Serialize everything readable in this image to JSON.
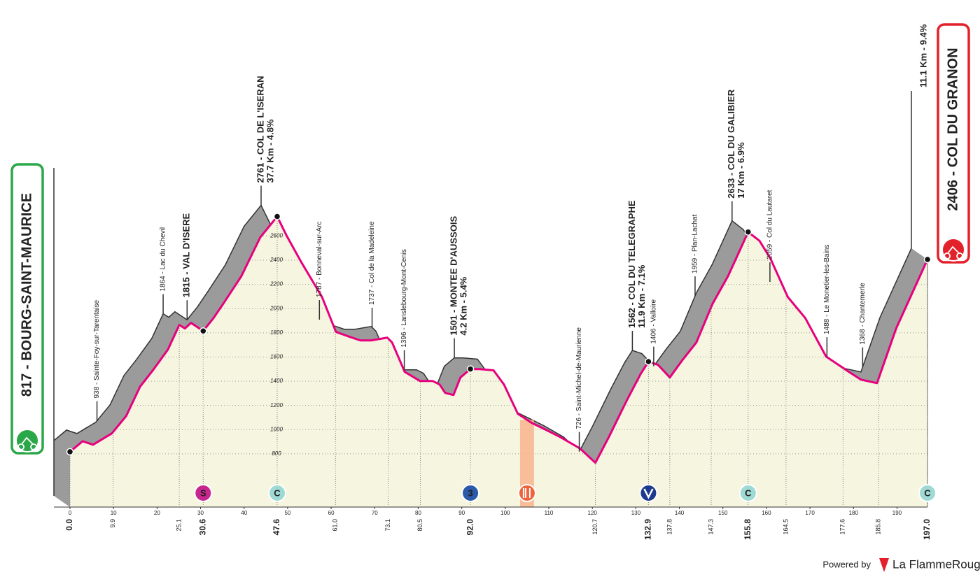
{
  "chart_data": {
    "type": "area",
    "color": "#e6007e",
    "xlim": [
      0,
      197
    ],
    "ylim": [
      360,
      4550
    ],
    "xticks": [
      0,
      10,
      20,
      30,
      40,
      50,
      60,
      70,
      80,
      90,
      100,
      110,
      120,
      130,
      140,
      150,
      160,
      170,
      180,
      190
    ],
    "yticks": [
      800,
      1000,
      1200,
      1400,
      1600,
      1800,
      2000,
      2200,
      2400,
      2600
    ],
    "x": [
      0,
      2.9,
      5.3,
      7.4,
      9.6,
      12.9,
      16.1,
      19.0,
      22.5,
      25.1,
      26.4,
      27.8,
      30.6,
      33.0,
      35.4,
      39.4,
      43.7,
      47.6,
      49.8,
      53.1,
      57.9,
      61.1,
      64.3,
      66.7,
      69.2,
      72.9,
      74.0,
      76.9,
      80.4,
      83.3,
      84.9,
      86.2,
      88.1,
      89.7,
      92.0,
      94.1,
      97.3,
      99.7,
      102.9,
      106.1,
      109.4,
      112.6,
      117.1,
      120.7,
      123.8,
      127.9,
      131.1,
      132.9,
      135.1,
      137.8,
      140.7,
      143.9,
      147.6,
      151.2,
      155.8,
      158.4,
      160.9,
      164.9,
      168.9,
      173.7,
      178.5,
      181.7,
      185.4,
      189.8,
      197.0
    ],
    "values": [
      817,
      904,
      875,
      921,
      968,
      1112,
      1355,
      1488,
      1662,
      1865,
      1836,
      1882,
      1815,
      1923,
      2050,
      2270,
      2588,
      2761,
      2600,
      2386,
      2096,
      1807,
      1766,
      1737,
      1737,
      1760,
      1720,
      1477,
      1402,
      1402,
      1373,
      1303,
      1286,
      1431,
      1501,
      1500,
      1490,
      1373,
      1130,
      1055,
      997,
      939,
      846,
      726,
      939,
      1240,
      1460,
      1562,
      1535,
      1431,
      1575,
      1720,
      2038,
      2270,
      2633,
      2560,
      2415,
      2096,
      1923,
      1604,
      1488,
      1413,
      1384,
      1836,
      2406
    ],
    "landmarks": [
      {
        "km": {
          "value": 0,
          "label": "0.0"
        },
        "text": "817 - BOURG-SAINT-MAURICE",
        "major": true,
        "kind": "start",
        "color": "#2aa748"
      },
      {
        "km": 9.9,
        "text": "938 - Sainte-Foy-sur-Tarentaise"
      },
      {
        "km": 25.1,
        "text": "1864 - Lac du Chevil"
      },
      {
        "km": 30.6,
        "text": "1815 - VAL D'ISERE",
        "major": true
      },
      {
        "km": 47.6,
        "text": "2761 - COL DE L'ISERAN",
        "sub": "37.7 Km - 4.8%",
        "major": true
      },
      {
        "km": {
          "value": 61,
          "label": "61.0"
        },
        "text": "1787 - Bonneval-sur-Arc"
      },
      {
        "km": 73.1,
        "text": "1737 - Col de la Madeleine"
      },
      {
        "km": 80.5,
        "text": "1396 - Lanslebourg-Mont-Cenis"
      },
      {
        "km": {
          "value": 92,
          "label": "92.0"
        },
        "text": "1501 - MONTEE D'AUSSOIS",
        "sub": "4.2 Km - 5.4%",
        "major": true
      },
      {
        "km": 120.7,
        "text": "726 - Saint-Michel-de-Maurienne"
      },
      {
        "km": 132.9,
        "text": "1562 - COL DU TELEGRAPHE",
        "sub": "11.9 Km - 7.1%",
        "major": true
      },
      {
        "km": 137.8,
        "text": "1406 - Valloire"
      },
      {
        "km": 147.3,
        "text": "1959 - Plan-Lachat"
      },
      {
        "km": 155.8,
        "text": "2633 - COL DU GALIBIER",
        "sub": "17 Km - 6.9%",
        "major": true
      },
      {
        "km": 164.5,
        "text": "2059 - Col du Lautaret"
      },
      {
        "km": 177.6,
        "text": "1488 - Le Monetier-les-Bains"
      },
      {
        "km": 185.8,
        "text": "1368 - Chantemerle"
      },
      {
        "km": {
          "value": 197,
          "label": "197.0"
        },
        "text": "2406 - COL DU GRANON",
        "sub": "11.1 Km - 9.4%",
        "major": true,
        "kind": "finish",
        "color": "#e3212b"
      }
    ],
    "markers": [
      {
        "km": 30.6,
        "label": "S",
        "color": "#c8268f"
      },
      {
        "km": 47.6,
        "label": "C",
        "color": "#9fd9d3"
      },
      {
        "km": 92,
        "label": "3",
        "color": "#2a5aa8"
      },
      {
        "km": 105,
        "zone": [
          103.4,
          106.6
        ],
        "color": "#f0643c"
      },
      {
        "km": 132.9,
        "color": "#1d3a8c"
      },
      {
        "km": 155.8,
        "label": "C",
        "color": "#9fd9d3"
      },
      {
        "km": 197,
        "label": "C",
        "color": "#9fd9d3"
      }
    ]
  },
  "footer": {
    "powered_by": "Powered by",
    "brand": "La FlammeRouge"
  }
}
